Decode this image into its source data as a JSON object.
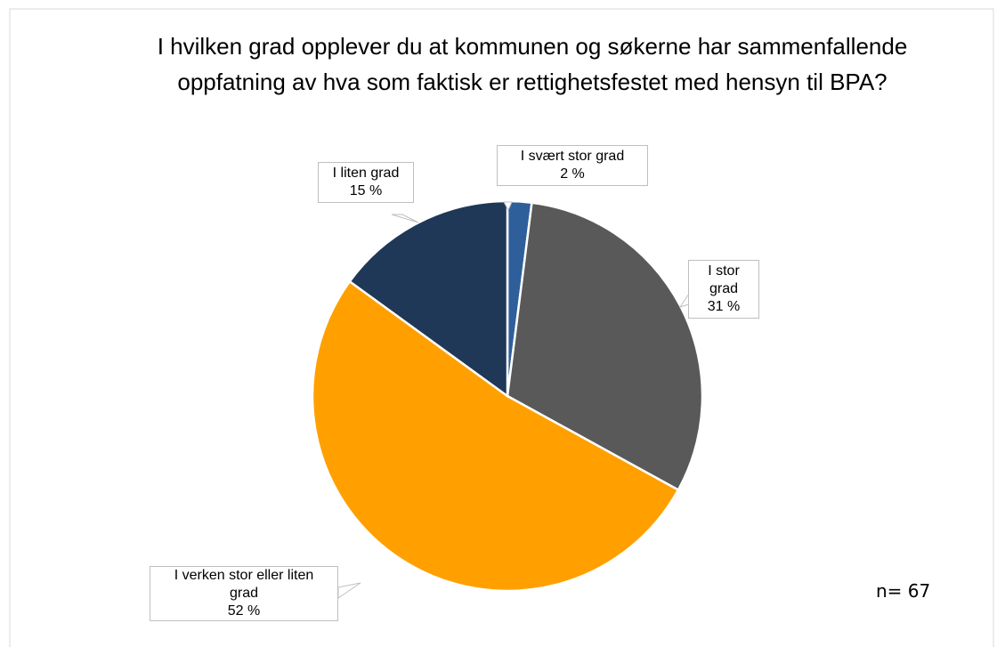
{
  "chart_data": {
    "type": "pie",
    "title": "I hvilken grad opplever du at kommunen og søkerne har sammenfallende oppfatning av hva som faktisk er rettighetsfestet med hensyn til BPA?",
    "categories": [
      "I svært stor grad",
      "I stor grad",
      "I verken stor eller liten grad",
      "I liten grad"
    ],
    "values": [
      2,
      31,
      52,
      15
    ],
    "value_labels": [
      "2 %",
      "31 %",
      "52 %",
      "15 %"
    ],
    "colors": [
      "#2e5f9b",
      "#595959",
      "#ffa000",
      "#203857"
    ],
    "annotation": "n= 67"
  }
}
